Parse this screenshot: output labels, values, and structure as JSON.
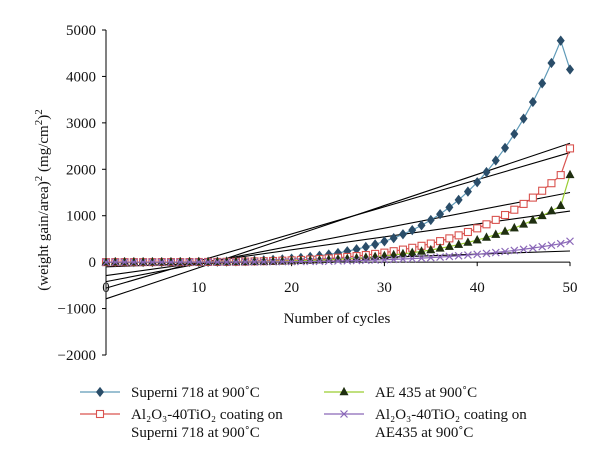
{
  "chart_data": {
    "type": "scatter",
    "xlabel": "Number of cycles",
    "ylabel_parts": [
      "(weight gain/area)",
      "2",
      " (mg/cm",
      "2",
      ")",
      "2"
    ],
    "xlim": [
      0,
      50
    ],
    "ylim": [
      -2000,
      5000
    ],
    "x_ticks": [
      "0",
      "10",
      "20",
      "30",
      "40",
      "50"
    ],
    "y_ticks": [
      "5000",
      "4000",
      "3000",
      "2000",
      "1000",
      "0",
      "−1000",
      "−2000"
    ],
    "grid": false,
    "legend_position": "bottom",
    "colors": {
      "superni": "#2a4d69",
      "superni_line": "#5f9ab8",
      "coat_superni": "#d9534f",
      "ae435": "#1f2f10",
      "ae435_line": "#9acd32",
      "coat_ae435": "#8a67b8",
      "trend": "#000000"
    },
    "series": [
      {
        "key": "superni",
        "marker": "diamond",
        "legend_lines": [
          "Superni 718 at 900˚C"
        ],
        "x": [
          0,
          1,
          2,
          3,
          4,
          5,
          6,
          7,
          8,
          9,
          10,
          11,
          12,
          13,
          14,
          15,
          16,
          17,
          18,
          19,
          20,
          21,
          22,
          23,
          24,
          25,
          26,
          27,
          28,
          29,
          30,
          31,
          32,
          33,
          34,
          35,
          36,
          37,
          38,
          39,
          40,
          41,
          42,
          43,
          44,
          45,
          46,
          47,
          48,
          49,
          50
        ],
        "y": [
          0,
          0,
          0,
          0,
          0,
          0,
          1,
          1,
          2,
          3,
          4,
          6,
          9,
          12,
          17,
          22,
          29,
          37,
          48,
          60,
          75,
          92,
          113,
          137,
          165,
          198,
          235,
          278,
          327,
          383,
          447,
          518,
          600,
          690,
          792,
          907,
          1035,
          1180,
          1340,
          1520,
          1720,
          1940,
          2190,
          2460,
          2760,
          3090,
          3450,
          3850,
          4290,
          4770,
          4150
        ]
      },
      {
        "key": "coat_superni",
        "marker": "square",
        "legend_lines": [
          "Al₂O₃-40TiO₂ coating on",
          "Superni 718 at 900˚C"
        ],
        "x": [
          0,
          1,
          2,
          3,
          4,
          5,
          6,
          7,
          8,
          9,
          10,
          11,
          12,
          13,
          14,
          15,
          16,
          17,
          18,
          19,
          20,
          21,
          22,
          23,
          24,
          25,
          26,
          27,
          28,
          29,
          30,
          31,
          32,
          33,
          34,
          35,
          36,
          37,
          38,
          39,
          40,
          41,
          42,
          43,
          44,
          45,
          46,
          47,
          48,
          49,
          50
        ],
        "y": [
          0,
          0,
          0,
          0,
          0,
          0,
          1,
          1,
          1,
          2,
          3,
          4,
          5,
          7,
          9,
          12,
          16,
          20,
          25,
          31,
          38,
          46,
          56,
          67,
          80,
          95,
          112,
          131,
          153,
          177,
          205,
          236,
          270,
          309,
          352,
          400,
          453,
          512,
          577,
          649,
          728,
          815,
          910,
          1015,
          1129,
          1254,
          1390,
          1538,
          1700,
          1875,
          2450
        ]
      },
      {
        "key": "ae435",
        "marker": "triangle",
        "legend_lines": [
          "AE 435 at 900˚C"
        ],
        "x": [
          0,
          1,
          2,
          3,
          4,
          5,
          6,
          7,
          8,
          9,
          10,
          11,
          12,
          13,
          14,
          15,
          16,
          17,
          18,
          19,
          20,
          21,
          22,
          23,
          24,
          25,
          26,
          27,
          28,
          29,
          30,
          31,
          32,
          33,
          34,
          35,
          36,
          37,
          38,
          39,
          40,
          41,
          42,
          43,
          44,
          45,
          46,
          47,
          48,
          49,
          50
        ],
        "y": [
          0,
          0,
          0,
          0,
          0,
          0,
          0,
          1,
          1,
          1,
          2,
          3,
          4,
          5,
          6,
          8,
          10,
          13,
          16,
          20,
          25,
          30,
          37,
          44,
          53,
          63,
          74,
          87,
          101,
          117,
          135,
          155,
          178,
          203,
          231,
          262,
          297,
          335,
          378,
          424,
          475,
          531,
          593,
          660,
          734,
          814,
          902,
          998,
          1102,
          1215,
          1880
        ]
      },
      {
        "key": "coat_ae435",
        "marker": "x",
        "legend_lines": [
          "Al₂O₃-40TiO₂ coating on",
          "AE435 at 900˚C"
        ],
        "x": [
          0,
          1,
          2,
          3,
          4,
          5,
          6,
          7,
          8,
          9,
          10,
          11,
          12,
          13,
          14,
          15,
          16,
          17,
          18,
          19,
          20,
          21,
          22,
          23,
          24,
          25,
          26,
          27,
          28,
          29,
          30,
          31,
          32,
          33,
          34,
          35,
          36,
          37,
          38,
          39,
          40,
          41,
          42,
          43,
          44,
          45,
          46,
          47,
          48,
          49,
          50
        ],
        "y": [
          0,
          0,
          0,
          0,
          0,
          0,
          0,
          0,
          0,
          1,
          1,
          1,
          2,
          2,
          3,
          4,
          5,
          6,
          7,
          9,
          11,
          13,
          15,
          18,
          21,
          25,
          29,
          34,
          39,
          45,
          52,
          59,
          67,
          76,
          86,
          97,
          109,
          122,
          136,
          152,
          169,
          187,
          207,
          229,
          252,
          277,
          304,
          333,
          364,
          397,
          450
        ]
      }
    ],
    "trendlines": [
      {
        "key": "superni_fit",
        "x": [
          0,
          50
        ],
        "y": [
          -790,
          2560
        ]
      },
      {
        "key": "coat_superni_fit",
        "x": [
          0,
          50
        ],
        "y": [
          -560,
          2360
        ]
      },
      {
        "key": "ae435_fit",
        "x": [
          0,
          50
        ],
        "y": [
          -420,
          1500
        ]
      },
      {
        "key": "coat_ae435_fit",
        "x": [
          0,
          50
        ],
        "y": [
          -290,
          1100
        ]
      },
      {
        "key": "low_fit",
        "x": [
          0,
          50
        ],
        "y": [
          -100,
          240
        ]
      }
    ]
  }
}
